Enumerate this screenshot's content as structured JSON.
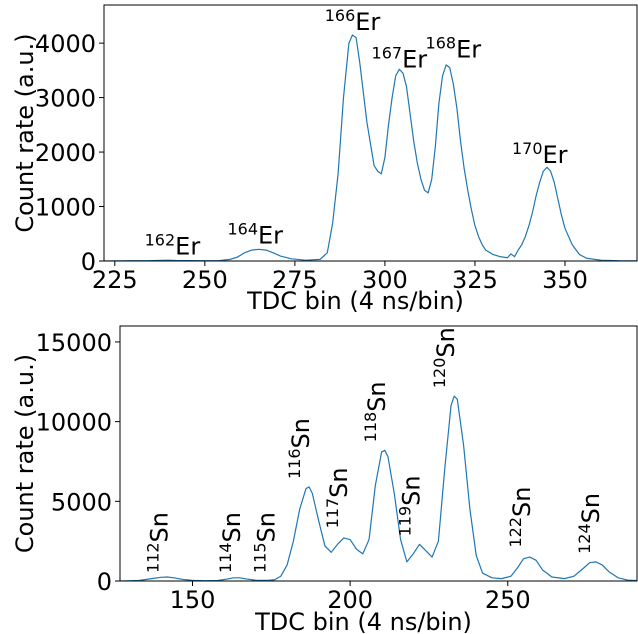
{
  "chart_data": [
    {
      "type": "line",
      "xlabel": "TDC bin (4 ns/bin)",
      "ylabel": "Count rate (a.u.)",
      "xlim": [
        222,
        370
      ],
      "ylim": [
        0,
        4700
      ],
      "xticks": [
        225,
        250,
        275,
        300,
        325,
        350
      ],
      "yticks": [
        0,
        1000,
        2000,
        3000,
        4000
      ],
      "line_color": "#1f77b4",
      "series": [
        {
          "values": [
            [
              222,
              0
            ],
            [
              226,
              3
            ],
            [
              230,
              5
            ],
            [
              234,
              6
            ],
            [
              238,
              12
            ],
            [
              240,
              15
            ],
            [
              242,
              10
            ],
            [
              246,
              8
            ],
            [
              250,
              6
            ],
            [
              254,
              8
            ],
            [
              257,
              30
            ],
            [
              259,
              70
            ],
            [
              261,
              150
            ],
            [
              263,
              200
            ],
            [
              265,
              215
            ],
            [
              267,
              200
            ],
            [
              269,
              150
            ],
            [
              271,
              90
            ],
            [
              274,
              40
            ],
            [
              278,
              15
            ],
            [
              282,
              30
            ],
            [
              284,
              150
            ],
            [
              285.5,
              700
            ],
            [
              287,
              1600
            ],
            [
              288.5,
              3000
            ],
            [
              290,
              4000
            ],
            [
              291,
              4150
            ],
            [
              292,
              4100
            ],
            [
              293,
              3650
            ],
            [
              294,
              3100
            ],
            [
              295,
              2550
            ],
            [
              296,
              2150
            ],
            [
              297,
              1750
            ],
            [
              298,
              1650
            ],
            [
              299,
              1600
            ],
            [
              300,
              1900
            ],
            [
              301,
              2500
            ],
            [
              302,
              3000
            ],
            [
              303,
              3400
            ],
            [
              304,
              3520
            ],
            [
              305,
              3450
            ],
            [
              306,
              3200
            ],
            [
              307,
              2700
            ],
            [
              308,
              2200
            ],
            [
              309,
              1800
            ],
            [
              310,
              1500
            ],
            [
              311,
              1300
            ],
            [
              312,
              1250
            ],
            [
              313,
              1500
            ],
            [
              314,
              2100
            ],
            [
              315,
              2900
            ],
            [
              316,
              3400
            ],
            [
              317,
              3600
            ],
            [
              318,
              3550
            ],
            [
              319,
              3250
            ],
            [
              320,
              2800
            ],
            [
              321,
              2200
            ],
            [
              322,
              1700
            ],
            [
              323,
              1300
            ],
            [
              324,
              950
            ],
            [
              325,
              650
            ],
            [
              326,
              450
            ],
            [
              327,
              300
            ],
            [
              328,
              200
            ],
            [
              330,
              120
            ],
            [
              332,
              80
            ],
            [
              334,
              60
            ],
            [
              335,
              130
            ],
            [
              336,
              80
            ],
            [
              337,
              200
            ],
            [
              338,
              300
            ],
            [
              339,
              450
            ],
            [
              340,
              650
            ],
            [
              341,
              900
            ],
            [
              342,
              1200
            ],
            [
              343,
              1450
            ],
            [
              344,
              1650
            ],
            [
              345,
              1720
            ],
            [
              346,
              1650
            ],
            [
              347,
              1450
            ],
            [
              348,
              1150
            ],
            [
              349,
              850
            ],
            [
              350,
              600
            ],
            [
              352,
              300
            ],
            [
              354,
              120
            ],
            [
              356,
              50
            ],
            [
              360,
              15
            ],
            [
              365,
              5
            ],
            [
              370,
              3
            ]
          ]
        }
      ],
      "annotations": [
        {
          "mass": "162",
          "element": "Er",
          "x": 241,
          "y": 120
        },
        {
          "mass": "164",
          "element": "Er",
          "x": 264,
          "y": 320
        },
        {
          "mass": "166",
          "element": "Er",
          "x": 291,
          "y": 4240
        },
        {
          "mass": "167",
          "element": "Er",
          "x": 304,
          "y": 3550
        },
        {
          "mass": "168",
          "element": "Er",
          "x": 319,
          "y": 3740
        },
        {
          "mass": "170",
          "element": "Er",
          "x": 343,
          "y": 1800
        }
      ]
    },
    {
      "type": "line",
      "xlabel": "TDC bin (4 ns/bin)",
      "ylabel": "Count rate (a.u.)",
      "xlim": [
        127,
        291
      ],
      "ylim": [
        0,
        16000
      ],
      "xticks": [
        150,
        200,
        250
      ],
      "yticks": [
        0,
        5000,
        10000,
        15000
      ],
      "line_color": "#1f77b4",
      "series": [
        {
          "values": [
            [
              127,
              0
            ],
            [
              133,
              30
            ],
            [
              137,
              150
            ],
            [
              140,
              230
            ],
            [
              142,
              250
            ],
            [
              144,
              200
            ],
            [
              147,
              100
            ],
            [
              150,
              40
            ],
            [
              154,
              20
            ],
            [
              158,
              30
            ],
            [
              161,
              120
            ],
            [
              163,
              200
            ],
            [
              165,
              200
            ],
            [
              167,
              130
            ],
            [
              170,
              50
            ],
            [
              174,
              40
            ],
            [
              176,
              80
            ],
            [
              178,
              300
            ],
            [
              180,
              1000
            ],
            [
              182,
              2500
            ],
            [
              184,
              4500
            ],
            [
              186,
              5800
            ],
            [
              187,
              5900
            ],
            [
              188,
              5500
            ],
            [
              190,
              3800
            ],
            [
              192,
              2200
            ],
            [
              194,
              1800
            ],
            [
              196,
              2300
            ],
            [
              198,
              2700
            ],
            [
              200,
              2600
            ],
            [
              202,
              2000
            ],
            [
              204,
              1700
            ],
            [
              206,
              2600
            ],
            [
              208,
              6000
            ],
            [
              210,
              8100
            ],
            [
              211,
              8200
            ],
            [
              212,
              7800
            ],
            [
              214,
              5500
            ],
            [
              216,
              2600
            ],
            [
              218,
              1200
            ],
            [
              220,
              1700
            ],
            [
              222,
              2300
            ],
            [
              224,
              1900
            ],
            [
              226,
              1500
            ],
            [
              228,
              2500
            ],
            [
              230,
              7000
            ],
            [
              232,
              11000
            ],
            [
              233,
              11600
            ],
            [
              234,
              11400
            ],
            [
              236,
              8500
            ],
            [
              238,
              4500
            ],
            [
              240,
              1600
            ],
            [
              242,
              500
            ],
            [
              245,
              200
            ],
            [
              248,
              150
            ],
            [
              251,
              300
            ],
            [
              253,
              800
            ],
            [
              255,
              1400
            ],
            [
              257,
              1500
            ],
            [
              259,
              1300
            ],
            [
              261,
              700
            ],
            [
              264,
              250
            ],
            [
              268,
              150
            ],
            [
              271,
              300
            ],
            [
              274,
              800
            ],
            [
              276,
              1150
            ],
            [
              278,
              1200
            ],
            [
              280,
              1000
            ],
            [
              282,
              600
            ],
            [
              285,
              200
            ],
            [
              288,
              60
            ],
            [
              291,
              30
            ]
          ]
        }
      ],
      "annotations": [
        {
          "mass": "112",
          "element": "Sn",
          "x": 142,
          "y": 500
        },
        {
          "mass": "114",
          "element": "Sn",
          "x": 165,
          "y": 500
        },
        {
          "mass": "115",
          "element": "Sn",
          "x": 176,
          "y": 500
        },
        {
          "mass": "116",
          "element": "Sn",
          "x": 187,
          "y": 6400
        },
        {
          "mass": "117",
          "element": "Sn",
          "x": 199,
          "y": 3300
        },
        {
          "mass": "118",
          "element": "Sn",
          "x": 211,
          "y": 8700
        },
        {
          "mass": "119",
          "element": "Sn",
          "x": 222,
          "y": 2800
        },
        {
          "mass": "120",
          "element": "Sn",
          "x": 233,
          "y": 12100
        },
        {
          "mass": "122",
          "element": "Sn",
          "x": 257,
          "y": 2100
        },
        {
          "mass": "124",
          "element": "Sn",
          "x": 279,
          "y": 1700
        }
      ]
    }
  ]
}
